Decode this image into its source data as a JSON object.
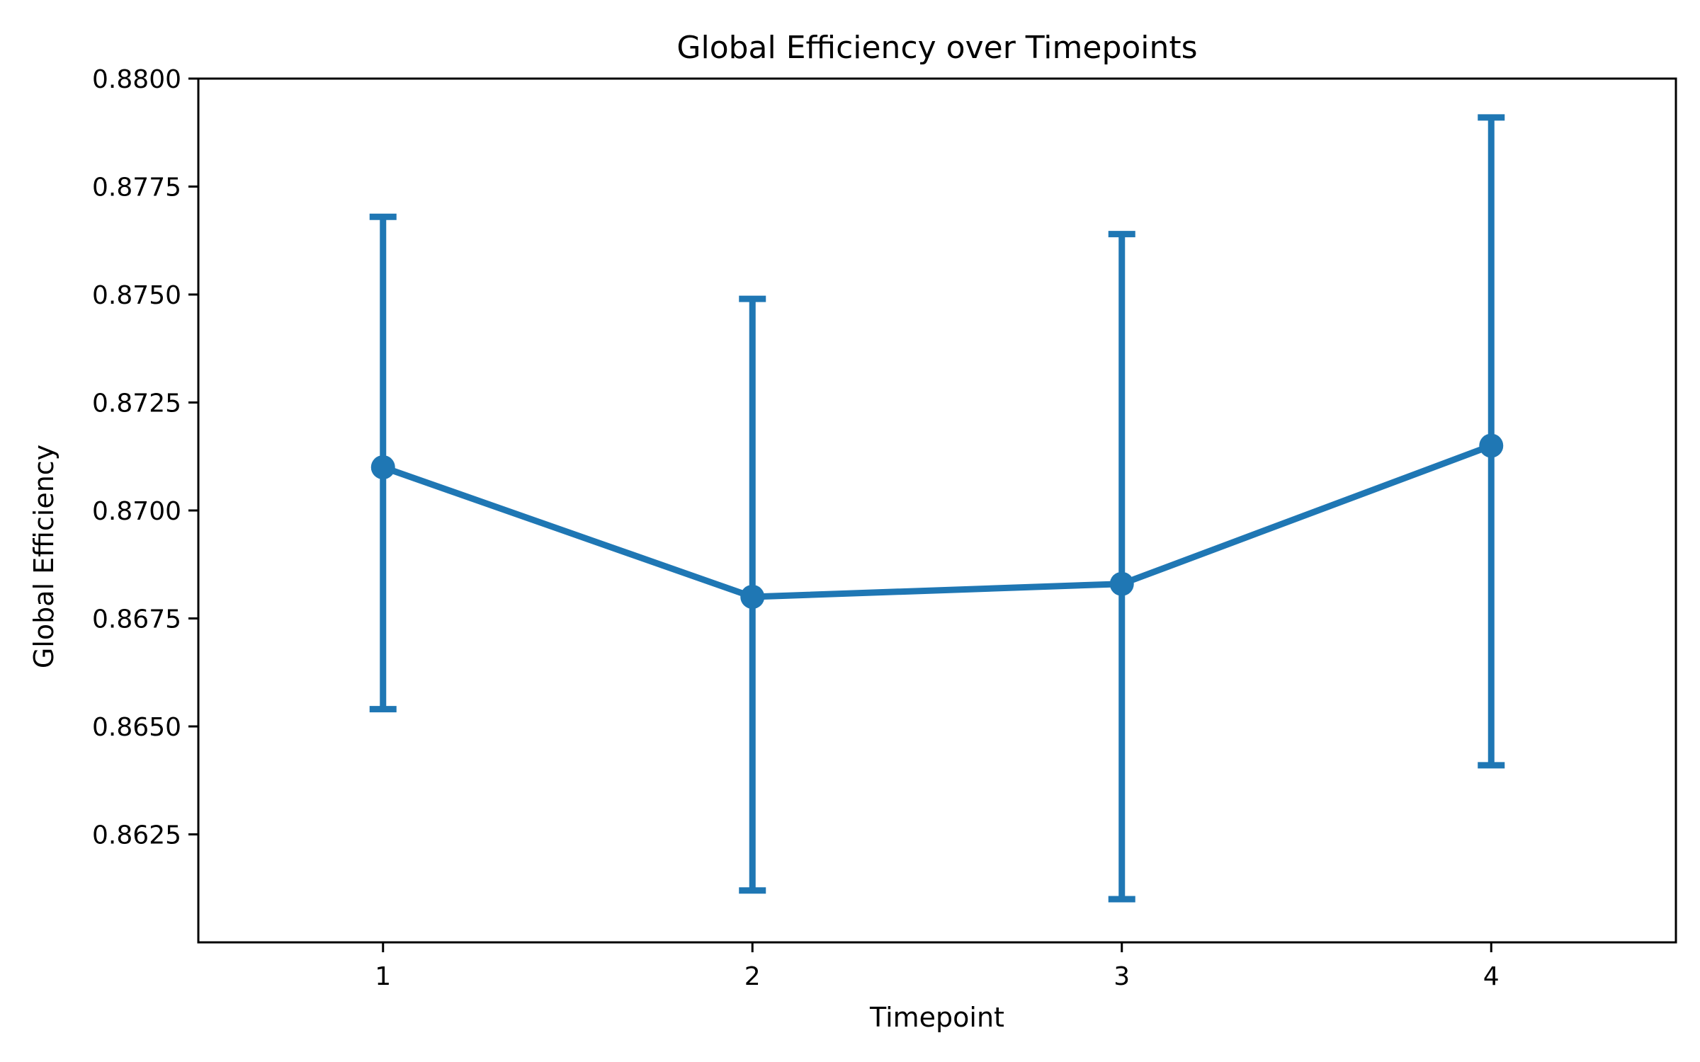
{
  "chart_data": {
    "type": "line",
    "title": "Global Efficiency over Timepoints",
    "xlabel": "Timepoint",
    "ylabel": "Global Efficiency",
    "x": [
      1,
      2,
      3,
      4
    ],
    "x_tick_labels": [
      "1",
      "2",
      "3",
      "4"
    ],
    "y_ticks": [
      0.8625,
      0.865,
      0.8675,
      0.87,
      0.8725,
      0.875,
      0.8775,
      0.88
    ],
    "y_tick_labels": [
      "0.8625",
      "0.8650",
      "0.8675",
      "0.8700",
      "0.8725",
      "0.8750",
      "0.8775",
      "0.8800"
    ],
    "xlim": [
      0.5,
      4.5
    ],
    "ylim": [
      0.86,
      0.88
    ],
    "grid": false,
    "series": [
      {
        "values": [
          0.871,
          0.868,
          0.8683,
          0.8715
        ],
        "error_lower": [
          0.8654,
          0.8612,
          0.861,
          0.8641
        ],
        "error_upper": [
          0.8768,
          0.8749,
          0.8764,
          0.8791
        ],
        "color": "#1f77b4"
      }
    ]
  }
}
